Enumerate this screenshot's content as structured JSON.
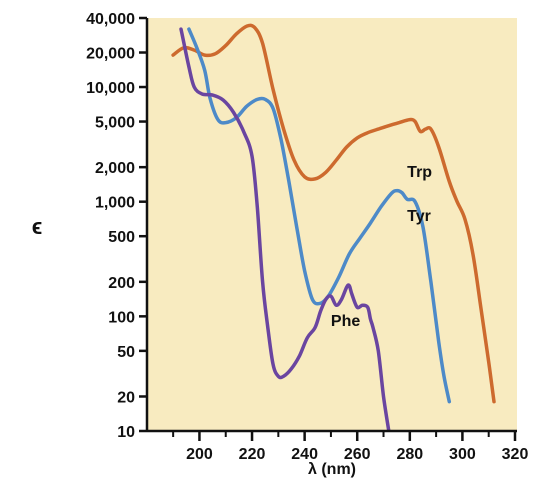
{
  "chart_data": {
    "type": "line",
    "title": "",
    "xlabel": "λ (nm)",
    "ylabel": "ϵ",
    "xlim": [
      185,
      320
    ],
    "ylim": [
      10,
      40000
    ],
    "yscale": "log",
    "grid": false,
    "background_color": "#f8ebc0",
    "x_ticks": [
      200,
      220,
      240,
      260,
      280,
      300,
      320
    ],
    "x_tick_labels": [
      "200",
      "220",
      "240",
      "260",
      "280",
      "300",
      "320"
    ],
    "y_ticks": [
      10,
      20,
      50,
      100,
      200,
      500,
      1000,
      2000,
      5000,
      10000,
      20000,
      40000
    ],
    "y_tick_labels": [
      "10",
      "20",
      "50",
      "100",
      "200",
      "500",
      "1,000",
      "2,000",
      "5,000",
      "10,000",
      "20,000",
      "40,000"
    ],
    "series": [
      {
        "name": "Trp",
        "color": "#cd6a2e",
        "label_at": [
          279,
          1650
        ],
        "points": [
          [
            190,
            19000
          ],
          [
            194,
            22000
          ],
          [
            198,
            21000
          ],
          [
            202,
            19000
          ],
          [
            206,
            19500
          ],
          [
            210,
            23000
          ],
          [
            214,
            29000
          ],
          [
            218,
            34000
          ],
          [
            221,
            33000
          ],
          [
            224,
            24000
          ],
          [
            228,
            9500
          ],
          [
            232,
            4300
          ],
          [
            236,
            2300
          ],
          [
            240,
            1650
          ],
          [
            244,
            1580
          ],
          [
            248,
            1800
          ],
          [
            252,
            2300
          ],
          [
            256,
            3000
          ],
          [
            260,
            3600
          ],
          [
            264,
            4000
          ],
          [
            268,
            4300
          ],
          [
            272,
            4600
          ],
          [
            276,
            4900
          ],
          [
            280,
            5200
          ],
          [
            282,
            5000
          ],
          [
            284,
            4100
          ],
          [
            286,
            4300
          ],
          [
            288,
            4300
          ],
          [
            291,
            3000
          ],
          [
            295,
            1500
          ],
          [
            298,
            1000
          ],
          [
            301,
            700
          ],
          [
            304,
            350
          ],
          [
            307,
            120
          ],
          [
            310,
            40
          ],
          [
            312,
            18
          ]
        ]
      },
      {
        "name": "Tyr",
        "color": "#4d8ac8",
        "label_at": [
          279,
          680
        ],
        "points": [
          [
            196,
            32000
          ],
          [
            199,
            22000
          ],
          [
            202,
            14000
          ],
          [
            204,
            8000
          ],
          [
            207,
            5200
          ],
          [
            210,
            4900
          ],
          [
            214,
            5400
          ],
          [
            218,
            6800
          ],
          [
            222,
            7800
          ],
          [
            225,
            7800
          ],
          [
            228,
            6500
          ],
          [
            231,
            3500
          ],
          [
            234,
            1500
          ],
          [
            237,
            600
          ],
          [
            240,
            250
          ],
          [
            243,
            140
          ],
          [
            246,
            130
          ],
          [
            249,
            150
          ],
          [
            253,
            220
          ],
          [
            257,
            350
          ],
          [
            261,
            480
          ],
          [
            265,
            650
          ],
          [
            269,
            900
          ],
          [
            273,
            1180
          ],
          [
            275,
            1250
          ],
          [
            277,
            1200
          ],
          [
            279,
            1050
          ],
          [
            282,
            1000
          ],
          [
            285,
            600
          ],
          [
            288,
            200
          ],
          [
            291,
            60
          ],
          [
            293,
            30
          ],
          [
            295,
            18
          ]
        ]
      },
      {
        "name": "Phe",
        "color": "#6a45a0",
        "label_at": [
          250,
          82
        ],
        "points": [
          [
            193,
            32000
          ],
          [
            196,
            15000
          ],
          [
            198,
            10000
          ],
          [
            201,
            8700
          ],
          [
            205,
            8500
          ],
          [
            209,
            7700
          ],
          [
            213,
            6000
          ],
          [
            217,
            4000
          ],
          [
            220,
            2500
          ],
          [
            222,
            900
          ],
          [
            224,
            200
          ],
          [
            226,
            80
          ],
          [
            228,
            38
          ],
          [
            230,
            30
          ],
          [
            232,
            30
          ],
          [
            235,
            35
          ],
          [
            238,
            45
          ],
          [
            241,
            65
          ],
          [
            244,
            80
          ],
          [
            246,
            110
          ],
          [
            248,
            140
          ],
          [
            250,
            150
          ],
          [
            252,
            125
          ],
          [
            254,
            140
          ],
          [
            256,
            180
          ],
          [
            257,
            185
          ],
          [
            258,
            155
          ],
          [
            260,
            120
          ],
          [
            262,
            125
          ],
          [
            264,
            120
          ],
          [
            265,
            95
          ],
          [
            266,
            80
          ],
          [
            268,
            50
          ],
          [
            270,
            20
          ],
          [
            272,
            10
          ]
        ]
      }
    ]
  }
}
